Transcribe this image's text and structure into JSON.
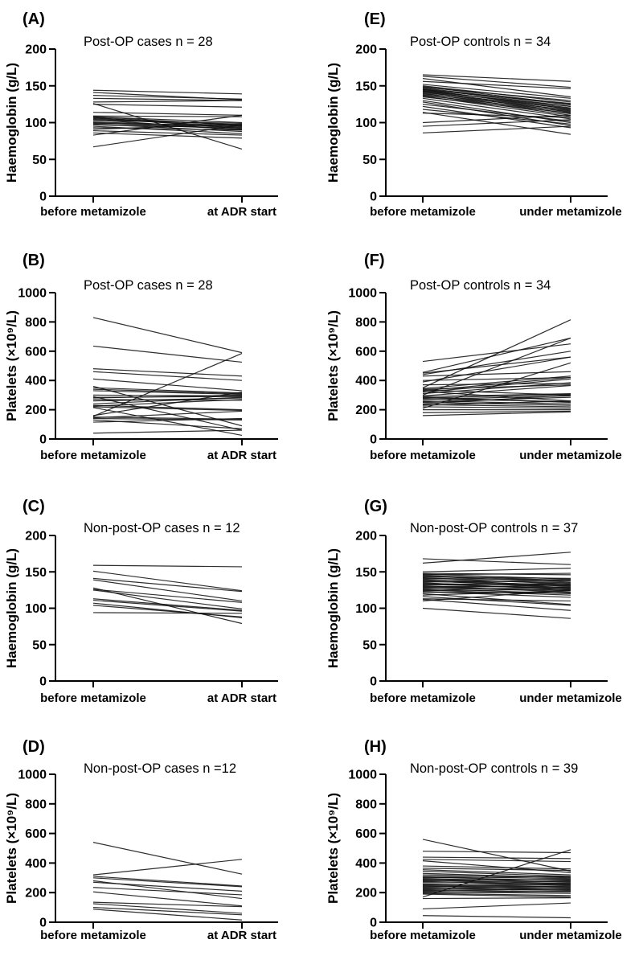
{
  "figure": {
    "background": "#ffffff",
    "text_color": "#000000",
    "line_color": "#111111",
    "panel_letters": [
      "(A)",
      "(B)",
      "(C)",
      "(D)",
      "(E)",
      "(F)",
      "(G)",
      "(H)"
    ]
  },
  "chart_data": [
    {
      "id": "A",
      "letter": "(A)",
      "type": "line",
      "title": "Post-OP cases n = 28",
      "ylabel": "Haemoglobin (g/L)",
      "ylim": [
        0,
        200
      ],
      "yticks": [
        0,
        50,
        100,
        150,
        200
      ],
      "categories": [
        "before metamizole",
        "at ADR start"
      ],
      "legend": "none",
      "grid": false,
      "pairs": [
        [
          144,
          139
        ],
        [
          141,
          131
        ],
        [
          137,
          132
        ],
        [
          133,
          130
        ],
        [
          128,
          130
        ],
        [
          126,
          64
        ],
        [
          125,
          121
        ],
        [
          114,
          110
        ],
        [
          109,
          108
        ],
        [
          108,
          100
        ],
        [
          108,
          96
        ],
        [
          107,
          92
        ],
        [
          106,
          97
        ],
        [
          105,
          95
        ],
        [
          104,
          90
        ],
        [
          103,
          99
        ],
        [
          101,
          94
        ],
        [
          100,
          91
        ],
        [
          99,
          96
        ],
        [
          98,
          88
        ],
        [
          97,
          93
        ],
        [
          95,
          85
        ],
        [
          93,
          90
        ],
        [
          91,
          98
        ],
        [
          89,
          83
        ],
        [
          86,
          79
        ],
        [
          83,
          110
        ],
        [
          67,
          97
        ]
      ]
    },
    {
      "id": "B",
      "letter": "(B)",
      "type": "line",
      "title": "Post-OP cases n = 28",
      "ylabel": "Platelets (×10⁹/L)",
      "ylim": [
        0,
        1000
      ],
      "yticks": [
        0,
        200,
        400,
        600,
        800,
        1000
      ],
      "categories": [
        "before metamizole",
        "at ADR start"
      ],
      "legend": "none",
      "grid": false,
      "pairs": [
        [
          830,
          590
        ],
        [
          635,
          525
        ],
        [
          480,
          430
        ],
        [
          460,
          400
        ],
        [
          410,
          330
        ],
        [
          360,
          90
        ],
        [
          350,
          315
        ],
        [
          340,
          310
        ],
        [
          330,
          305
        ],
        [
          300,
          295
        ],
        [
          290,
          60
        ],
        [
          285,
          290
        ],
        [
          280,
          300
        ],
        [
          270,
          265
        ],
        [
          260,
          280
        ],
        [
          240,
          285
        ],
        [
          230,
          200
        ],
        [
          225,
          270
        ],
        [
          220,
          195
        ],
        [
          215,
          25
        ],
        [
          160,
          320
        ],
        [
          155,
          585
        ],
        [
          150,
          135
        ],
        [
          145,
          190
        ],
        [
          140,
          130
        ],
        [
          130,
          70
        ],
        [
          115,
          140
        ],
        [
          40,
          60
        ]
      ]
    },
    {
      "id": "C",
      "letter": "(C)",
      "type": "line",
      "title": "Non-post-OP cases n = 12",
      "ylabel": "Haemoglobin (g/L)",
      "ylim": [
        0,
        200
      ],
      "yticks": [
        0,
        50,
        100,
        150,
        200
      ],
      "categories": [
        "before metamizole",
        "at ADR start"
      ],
      "legend": "none",
      "grid": false,
      "pairs": [
        [
          159,
          157
        ],
        [
          151,
          124
        ],
        [
          141,
          123
        ],
        [
          139,
          110
        ],
        [
          128,
          79
        ],
        [
          126,
          108
        ],
        [
          125,
          99
        ],
        [
          113,
          97
        ],
        [
          111,
          96
        ],
        [
          107,
          87
        ],
        [
          104,
          88
        ],
        [
          94,
          93
        ]
      ]
    },
    {
      "id": "D",
      "letter": "(D)",
      "type": "line",
      "title": "Non-post-OP cases n =12",
      "ylabel": "Platelets (×10⁹/L)",
      "ylim": [
        0,
        1000
      ],
      "yticks": [
        0,
        200,
        400,
        600,
        800,
        1000
      ],
      "categories": [
        "before metamizole",
        "at ADR start"
      ],
      "legend": "none",
      "grid": false,
      "pairs": [
        [
          540,
          325
        ],
        [
          320,
          425
        ],
        [
          310,
          245
        ],
        [
          300,
          240
        ],
        [
          280,
          160
        ],
        [
          270,
          210
        ],
        [
          235,
          185
        ],
        [
          205,
          110
        ],
        [
          135,
          105
        ],
        [
          125,
          60
        ],
        [
          100,
          50
        ],
        [
          88,
          15
        ]
      ]
    },
    {
      "id": "E",
      "letter": "(E)",
      "type": "line",
      "title": "Post-OP controls n = 34",
      "ylabel": "Haemoglobin (g/L)",
      "ylim": [
        0,
        200
      ],
      "yticks": [
        0,
        50,
        100,
        150,
        200
      ],
      "categories": [
        "before metamizole",
        "under metamizole"
      ],
      "legend": "none",
      "grid": false,
      "pairs": [
        [
          165,
          156
        ],
        [
          163,
          148
        ],
        [
          160,
          135
        ],
        [
          156,
          146
        ],
        [
          152,
          133
        ],
        [
          150,
          128
        ],
        [
          149,
          125
        ],
        [
          148,
          130
        ],
        [
          147,
          124
        ],
        [
          146,
          122
        ],
        [
          145,
          126
        ],
        [
          145,
          118
        ],
        [
          144,
          120
        ],
        [
          143,
          116
        ],
        [
          143,
          122
        ],
        [
          142,
          114
        ],
        [
          141,
          119
        ],
        [
          140,
          112
        ],
        [
          139,
          117
        ],
        [
          138,
          110
        ],
        [
          137,
          115
        ],
        [
          136,
          108
        ],
        [
          135,
          113
        ],
        [
          133,
          105
        ],
        [
          130,
          100
        ],
        [
          128,
          96
        ],
        [
          125,
          102
        ],
        [
          122,
          93
        ],
        [
          118,
          98
        ],
        [
          114,
          84
        ],
        [
          113,
          107
        ],
        [
          100,
          110
        ],
        [
          95,
          104
        ],
        [
          86,
          95
        ]
      ]
    },
    {
      "id": "F",
      "letter": "(F)",
      "type": "line",
      "title": "Post-OP controls n = 34",
      "ylabel": "Platelets (×10⁹/L)",
      "ylim": [
        0,
        1000
      ],
      "yticks": [
        0,
        200,
        400,
        600,
        800,
        1000
      ],
      "categories": [
        "before metamizole",
        "under metamizole"
      ],
      "legend": "none",
      "grid": false,
      "pairs": [
        [
          530,
          650
        ],
        [
          455,
          690
        ],
        [
          450,
          560
        ],
        [
          440,
          600
        ],
        [
          430,
          460
        ],
        [
          400,
          420
        ],
        [
          390,
          560
        ],
        [
          370,
          380
        ],
        [
          350,
          815
        ],
        [
          345,
          430
        ],
        [
          340,
          370
        ],
        [
          335,
          300
        ],
        [
          330,
          420
        ],
        [
          325,
          260
        ],
        [
          320,
          410
        ],
        [
          310,
          385
        ],
        [
          300,
          690
        ],
        [
          295,
          365
        ],
        [
          290,
          310
        ],
        [
          285,
          250
        ],
        [
          280,
          305
        ],
        [
          275,
          255
        ],
        [
          270,
          295
        ],
        [
          260,
          240
        ],
        [
          255,
          285
        ],
        [
          250,
          230
        ],
        [
          240,
          300
        ],
        [
          235,
          220
        ],
        [
          230,
          260
        ],
        [
          220,
          210
        ],
        [
          210,
          520
        ],
        [
          200,
          200
        ],
        [
          180,
          190
        ],
        [
          160,
          185
        ]
      ]
    },
    {
      "id": "G",
      "letter": "(G)",
      "type": "line",
      "title": "Non-post-OP controls n = 37",
      "ylabel": "Haemoglobin (g/L)",
      "ylim": [
        0,
        200
      ],
      "yticks": [
        0,
        50,
        100,
        150,
        200
      ],
      "categories": [
        "before metamizole",
        "under metamizole"
      ],
      "legend": "none",
      "grid": false,
      "pairs": [
        [
          168,
          160
        ],
        [
          162,
          177
        ],
        [
          150,
          155
        ],
        [
          148,
          146
        ],
        [
          147,
          140
        ],
        [
          146,
          148
        ],
        [
          145,
          138
        ],
        [
          144,
          136
        ],
        [
          143,
          141
        ],
        [
          142,
          133
        ],
        [
          141,
          139
        ],
        [
          140,
          130
        ],
        [
          139,
          135
        ],
        [
          138,
          128
        ],
        [
          137,
          132
        ],
        [
          136,
          138
        ],
        [
          135,
          125
        ],
        [
          134,
          131
        ],
        [
          133,
          127
        ],
        [
          132,
          134
        ],
        [
          131,
          122
        ],
        [
          130,
          129
        ],
        [
          129,
          124
        ],
        [
          128,
          132
        ],
        [
          127,
          120
        ],
        [
          126,
          128
        ],
        [
          125,
          118
        ],
        [
          124,
          126
        ],
        [
          123,
          115
        ],
        [
          122,
          121
        ],
        [
          120,
          105
        ],
        [
          118,
          124
        ],
        [
          116,
          104
        ],
        [
          113,
          110
        ],
        [
          112,
          97
        ],
        [
          110,
          125
        ],
        [
          100,
          86
        ]
      ]
    },
    {
      "id": "H",
      "letter": "(H)",
      "type": "line",
      "title": "Non-post-OP controls n = 39",
      "ylabel": "Platelets (×10⁹/L)",
      "ylim": [
        0,
        1000
      ],
      "yticks": [
        0,
        200,
        400,
        600,
        800,
        1000
      ],
      "categories": [
        "before metamizole",
        "under metamizole"
      ],
      "legend": "none",
      "grid": false,
      "pairs": [
        [
          560,
          345
        ],
        [
          480,
          470
        ],
        [
          440,
          430
        ],
        [
          425,
          410
        ],
        [
          415,
          335
        ],
        [
          380,
          360
        ],
        [
          365,
          350
        ],
        [
          355,
          320
        ],
        [
          345,
          310
        ],
        [
          330,
          300
        ],
        [
          320,
          305
        ],
        [
          310,
          295
        ],
        [
          305,
          280
        ],
        [
          300,
          310
        ],
        [
          295,
          270
        ],
        [
          290,
          285
        ],
        [
          285,
          260
        ],
        [
          280,
          290
        ],
        [
          275,
          255
        ],
        [
          270,
          275
        ],
        [
          260,
          250
        ],
        [
          255,
          265
        ],
        [
          250,
          240
        ],
        [
          245,
          230
        ],
        [
          240,
          255
        ],
        [
          235,
          220
        ],
        [
          230,
          245
        ],
        [
          225,
          215
        ],
        [
          220,
          235
        ],
        [
          215,
          205
        ],
        [
          210,
          225
        ],
        [
          205,
          195
        ],
        [
          200,
          210
        ],
        [
          195,
          180
        ],
        [
          190,
          170
        ],
        [
          170,
          490
        ],
        [
          160,
          165
        ],
        [
          90,
          130
        ],
        [
          45,
          30
        ]
      ]
    }
  ]
}
